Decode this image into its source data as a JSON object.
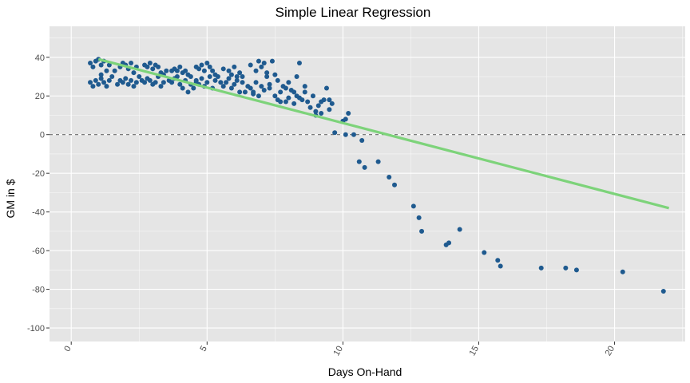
{
  "chart_data": {
    "type": "scatter",
    "title": "Simple Linear Regression",
    "xlabel": "Days On-Hand",
    "ylabel": "GM in $",
    "xlim": [
      -0.8,
      22.6
    ],
    "ylim": [
      -107,
      56
    ],
    "x_ticks": [
      0,
      5,
      10,
      15,
      20
    ],
    "y_ticks": [
      -100,
      -80,
      -60,
      -40,
      -20,
      0,
      20,
      40
    ],
    "grid": true,
    "reference_line": {
      "y": 0,
      "style": "dashed"
    },
    "colors": {
      "panel": "#e5e5e5",
      "grid": "#ffffff",
      "points": "#1f5a8f",
      "fit_line": "#7dd37a",
      "reference": "#6b6b6b"
    },
    "regression_line": {
      "x": [
        1.0,
        22.0
      ],
      "y": [
        39,
        -38
      ]
    },
    "series": [
      {
        "points": [
          [
            0.7,
            27
          ],
          [
            0.8,
            25
          ],
          [
            0.9,
            28
          ],
          [
            1.0,
            26
          ],
          [
            1.1,
            29
          ],
          [
            1.2,
            27
          ],
          [
            1.3,
            25
          ],
          [
            1.4,
            28
          ],
          [
            0.8,
            35
          ],
          [
            0.9,
            38
          ],
          [
            1.0,
            39
          ],
          [
            1.1,
            36
          ],
          [
            1.2,
            38
          ],
          [
            0.7,
            37
          ],
          [
            1.3,
            33
          ],
          [
            1.5,
            30
          ],
          [
            1.4,
            36
          ],
          [
            1.1,
            31
          ],
          [
            1.7,
            26
          ],
          [
            1.8,
            28
          ],
          [
            1.9,
            27
          ],
          [
            2.0,
            29
          ],
          [
            2.1,
            26
          ],
          [
            2.2,
            28
          ],
          [
            2.3,
            25
          ],
          [
            2.4,
            27
          ],
          [
            1.8,
            35
          ],
          [
            1.9,
            37
          ],
          [
            2.0,
            36
          ],
          [
            2.1,
            34
          ],
          [
            2.2,
            37
          ],
          [
            2.3,
            32
          ],
          [
            2.5,
            30
          ],
          [
            2.6,
            28
          ],
          [
            1.6,
            33
          ],
          [
            2.4,
            35
          ],
          [
            2.7,
            27
          ],
          [
            2.8,
            29
          ],
          [
            2.9,
            28
          ],
          [
            3.0,
            26
          ],
          [
            3.1,
            27
          ],
          [
            3.2,
            30
          ],
          [
            3.3,
            25
          ],
          [
            3.4,
            27
          ],
          [
            2.8,
            35
          ],
          [
            2.9,
            37
          ],
          [
            3.0,
            34
          ],
          [
            3.1,
            36
          ],
          [
            3.2,
            35
          ],
          [
            3.3,
            32
          ],
          [
            3.4,
            31
          ],
          [
            3.5,
            33
          ],
          [
            2.7,
            36
          ],
          [
            3.6,
            28
          ],
          [
            3.7,
            27
          ],
          [
            3.8,
            29
          ],
          [
            3.9,
            30
          ],
          [
            4.0,
            26
          ],
          [
            4.1,
            24
          ],
          [
            4.2,
            28
          ],
          [
            4.3,
            22
          ],
          [
            4.4,
            26
          ],
          [
            3.8,
            34
          ],
          [
            3.9,
            33
          ],
          [
            4.0,
            35
          ],
          [
            4.1,
            32
          ],
          [
            4.2,
            33
          ],
          [
            4.3,
            31
          ],
          [
            4.4,
            30
          ],
          [
            4.5,
            24
          ],
          [
            3.7,
            33
          ],
          [
            4.6,
            27
          ],
          [
            4.6,
            28
          ],
          [
            4.7,
            26
          ],
          [
            4.8,
            29
          ],
          [
            4.9,
            25
          ],
          [
            5.0,
            27
          ],
          [
            5.1,
            30
          ],
          [
            5.2,
            24
          ],
          [
            5.3,
            28
          ],
          [
            4.7,
            34
          ],
          [
            4.8,
            36
          ],
          [
            4.9,
            33
          ],
          [
            5.0,
            37
          ],
          [
            5.1,
            35
          ],
          [
            5.2,
            33
          ],
          [
            5.3,
            31
          ],
          [
            5.4,
            30
          ],
          [
            5.5,
            27
          ],
          [
            4.6,
            35
          ],
          [
            5.6,
            25
          ],
          [
            5.7,
            27
          ],
          [
            5.8,
            29
          ],
          [
            5.9,
            24
          ],
          [
            6.0,
            26
          ],
          [
            6.1,
            28
          ],
          [
            6.2,
            22
          ],
          [
            6.3,
            27
          ],
          [
            5.6,
            34
          ],
          [
            5.8,
            33
          ],
          [
            6.0,
            35
          ],
          [
            6.2,
            32
          ],
          [
            6.3,
            30
          ],
          [
            6.4,
            22
          ],
          [
            6.5,
            25
          ],
          [
            6.6,
            36
          ],
          [
            5.9,
            31
          ],
          [
            6.1,
            30
          ],
          [
            6.6,
            24
          ],
          [
            6.7,
            22
          ],
          [
            6.8,
            27
          ],
          [
            6.9,
            20
          ],
          [
            7.0,
            25
          ],
          [
            7.1,
            23
          ],
          [
            7.2,
            30
          ],
          [
            7.3,
            26
          ],
          [
            6.8,
            33
          ],
          [
            7.0,
            35
          ],
          [
            7.2,
            32
          ],
          [
            6.9,
            38
          ],
          [
            7.1,
            37
          ],
          [
            7.4,
            38
          ],
          [
            7.5,
            31
          ],
          [
            7.6,
            28
          ],
          [
            6.7,
            21
          ],
          [
            7.3,
            24
          ],
          [
            7.5,
            20
          ],
          [
            7.6,
            18
          ],
          [
            7.7,
            22
          ],
          [
            7.8,
            25
          ],
          [
            7.9,
            17
          ],
          [
            8.0,
            19
          ],
          [
            8.1,
            23
          ],
          [
            8.2,
            16
          ],
          [
            8.3,
            20
          ],
          [
            8.4,
            37
          ],
          [
            8.5,
            18
          ],
          [
            8.6,
            22
          ],
          [
            8.7,
            17
          ],
          [
            8.8,
            14
          ],
          [
            8.9,
            20
          ],
          [
            9.0,
            12
          ],
          [
            9.1,
            15
          ],
          [
            9.2,
            11
          ],
          [
            9.3,
            18
          ],
          [
            9.4,
            24
          ],
          [
            9.5,
            13
          ],
          [
            9.6,
            16
          ],
          [
            8.0,
            27
          ],
          [
            8.3,
            30
          ],
          [
            7.7,
            17
          ],
          [
            8.2,
            22
          ],
          [
            9.0,
            10
          ],
          [
            9.2,
            17
          ],
          [
            8.6,
            25
          ],
          [
            7.9,
            24
          ],
          [
            8.4,
            19
          ],
          [
            9.5,
            18
          ],
          [
            9.7,
            1
          ],
          [
            10.0,
            7
          ],
          [
            10.1,
            0
          ],
          [
            10.1,
            8
          ],
          [
            10.2,
            11
          ],
          [
            10.4,
            0
          ],
          [
            10.6,
            -14
          ],
          [
            10.7,
            -3
          ],
          [
            10.8,
            -17
          ],
          [
            11.3,
            -14
          ],
          [
            11.7,
            -22
          ],
          [
            11.9,
            -26
          ],
          [
            12.6,
            -37
          ],
          [
            12.8,
            -43
          ],
          [
            12.9,
            -50
          ],
          [
            13.8,
            -57
          ],
          [
            13.9,
            -56
          ],
          [
            14.3,
            -49
          ],
          [
            15.2,
            -61
          ],
          [
            15.7,
            -65
          ],
          [
            15.8,
            -68
          ],
          [
            17.3,
            -69
          ],
          [
            18.2,
            -69
          ],
          [
            18.6,
            -70
          ],
          [
            20.3,
            -71
          ],
          [
            21.8,
            -81
          ]
        ]
      }
    ]
  }
}
